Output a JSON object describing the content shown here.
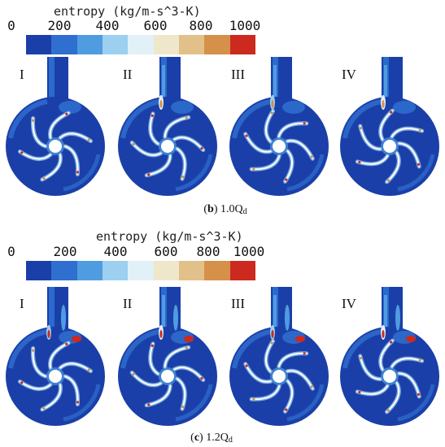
{
  "legend": {
    "title": "entropy (kg/m-s^3-K)",
    "ticks": [
      "0",
      "200",
      "400",
      "600",
      "800",
      "1000"
    ],
    "colors": [
      "#1b3fa8",
      "#2f6fd0",
      "#4f9de0",
      "#9ccff0",
      "#e2f0f8",
      "#efe7c9",
      "#e1c189",
      "#d5904a",
      "#cc2a1f"
    ]
  },
  "panels": [
    {
      "id": "b",
      "case_labels": [
        "I",
        "II",
        "III",
        "IV"
      ],
      "caption_letter": "b",
      "caption_text": "1.0Q",
      "caption_sub": "d"
    },
    {
      "id": "c",
      "case_labels": [
        "I",
        "II",
        "III",
        "IV"
      ],
      "caption_letter": "c",
      "caption_text": "1.2Q",
      "caption_sub": "d"
    }
  ]
}
